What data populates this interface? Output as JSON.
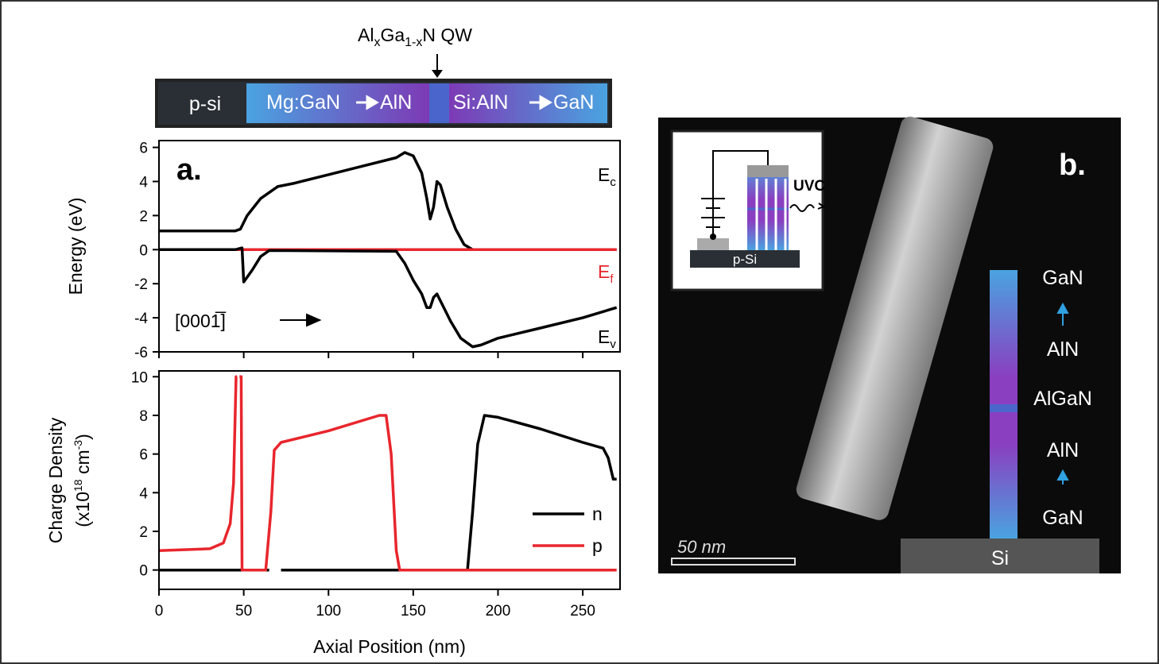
{
  "chart_data": [
    {
      "type": "line",
      "ylabel": "Energy (eV)",
      "xlim": [
        0,
        272
      ],
      "ylim": [
        -6,
        6.4
      ],
      "yticks": [
        -6,
        -4,
        -2,
        0,
        2,
        4,
        6
      ],
      "xticks": [
        0,
        50,
        100,
        150,
        200,
        250
      ],
      "xtick_labels": false,
      "panel_label": "a.",
      "direction": "[0001̅]",
      "band_labels": [
        {
          "main": "E",
          "sub": "c"
        },
        {
          "main": "E",
          "sub": "f"
        },
        {
          "main": "E",
          "sub": "v"
        }
      ],
      "series": [
        {
          "color": "#000000",
          "x": [
            0,
            45,
            48,
            52,
            60,
            70,
            80,
            100,
            120,
            140,
            145,
            150,
            155,
            158,
            160,
            162,
            164,
            166,
            170,
            175,
            180,
            185,
            270
          ],
          "values": [
            1.1,
            1.1,
            1.2,
            2.0,
            3.0,
            3.7,
            3.9,
            4.4,
            4.9,
            5.4,
            5.7,
            5.5,
            4.5,
            3.0,
            1.8,
            2.5,
            4.0,
            3.8,
            2.5,
            1.2,
            0.3,
            0,
            0
          ]
        },
        {
          "color": "#e8262d",
          "x": [
            0,
            270
          ],
          "values": [
            0,
            0
          ]
        },
        {
          "color": "#000000",
          "x": [
            0,
            45,
            49,
            50,
            55,
            60,
            65,
            140,
            145,
            150,
            155,
            158,
            160,
            162,
            164,
            167,
            172,
            178,
            185,
            190,
            200,
            225,
            250,
            270
          ],
          "values": [
            0,
            0,
            0.1,
            -1.9,
            -1.2,
            -0.4,
            -0.05,
            -0.1,
            -0.8,
            -1.8,
            -2.6,
            -3.4,
            -3.4,
            -2.8,
            -2.6,
            -3.2,
            -4.2,
            -5.2,
            -5.7,
            -5.6,
            -5.2,
            -4.6,
            -4.0,
            -3.4
          ]
        }
      ]
    },
    {
      "type": "line",
      "xlabel": "Axial Position (nm)",
      "ylabel": "Charge Density",
      "ylabel_line2": [
        "(x10",
        "18",
        " cm",
        "-3",
        ")"
      ],
      "xlim": [
        0,
        272
      ],
      "ylim": [
        -1,
        10.3
      ],
      "yticks": [
        0,
        2,
        4,
        6,
        8,
        10
      ],
      "xticks": [
        0,
        50,
        100,
        150,
        200,
        250
      ],
      "xtick_labels": true,
      "legend": "lower right",
      "series": [
        {
          "name": "n",
          "color": "#000000",
          "x": [
            0,
            65,
            null,
            72,
            140,
            182,
            185,
            188,
            192,
            200,
            225,
            250,
            262,
            265,
            268,
            270
          ],
          "values": [
            0,
            0,
            null,
            0,
            0,
            0,
            3,
            6.5,
            8,
            7.9,
            7.3,
            6.6,
            6.3,
            5.8,
            4.7,
            4.7
          ]
        },
        {
          "name": "p",
          "color": "#e8262d",
          "x": [
            0,
            30,
            38,
            42,
            44,
            45.5,
            46,
            null,
            47.5,
            48.5,
            49,
            63,
            66,
            68,
            72,
            100,
            130,
            134,
            137,
            140,
            142,
            270
          ],
          "values": [
            1,
            1.1,
            1.4,
            2.4,
            4.5,
            10,
            10,
            null,
            10,
            10,
            0,
            0,
            3,
            6.2,
            6.6,
            7.2,
            8,
            8,
            6,
            1,
            0,
            0
          ]
        }
      ]
    }
  ],
  "schematic": {
    "qw_label": [
      "Al",
      "x",
      "Ga",
      "1-x",
      "N QW"
    ],
    "segments": [
      "p-si",
      "Mg:GaN",
      "AlN",
      "Si:AlN",
      "GaN"
    ]
  },
  "panel_b": {
    "label": "b.",
    "inset": {
      "emission": "UVC",
      "substrate": "p-Si"
    },
    "layers": [
      "GaN",
      "AlN",
      "AlGaN",
      "AlN",
      "GaN"
    ],
    "substrate": "Si",
    "scale_bar": "50 nm"
  }
}
